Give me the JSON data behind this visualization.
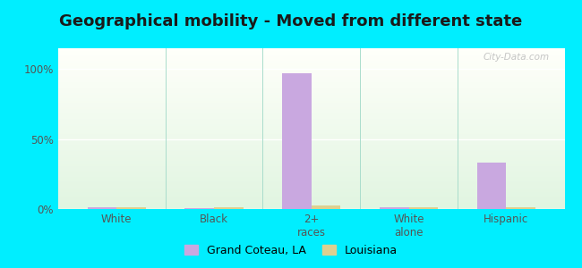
{
  "title": "Geographical mobility - Moved from different state",
  "categories": [
    "White",
    "Black",
    "2+\nraces",
    "White\nalone",
    "Hispanic"
  ],
  "grand_coteau_values": [
    1.0,
    0.5,
    97.0,
    1.0,
    33.0
  ],
  "louisiana_values": [
    1.5,
    1.5,
    2.5,
    1.5,
    1.5
  ],
  "bar_color_gc": "#c9a8e0",
  "bar_color_la": "#ddd090",
  "background_outer": "#00eeff",
  "yticks": [
    0,
    50,
    100
  ],
  "ytick_labels": [
    "0%",
    "50%",
    "100%"
  ],
  "ylim": [
    0,
    115
  ],
  "legend_gc": "Grand Coteau, LA",
  "legend_la": "Louisiana",
  "title_fontsize": 13,
  "bar_width": 0.3
}
